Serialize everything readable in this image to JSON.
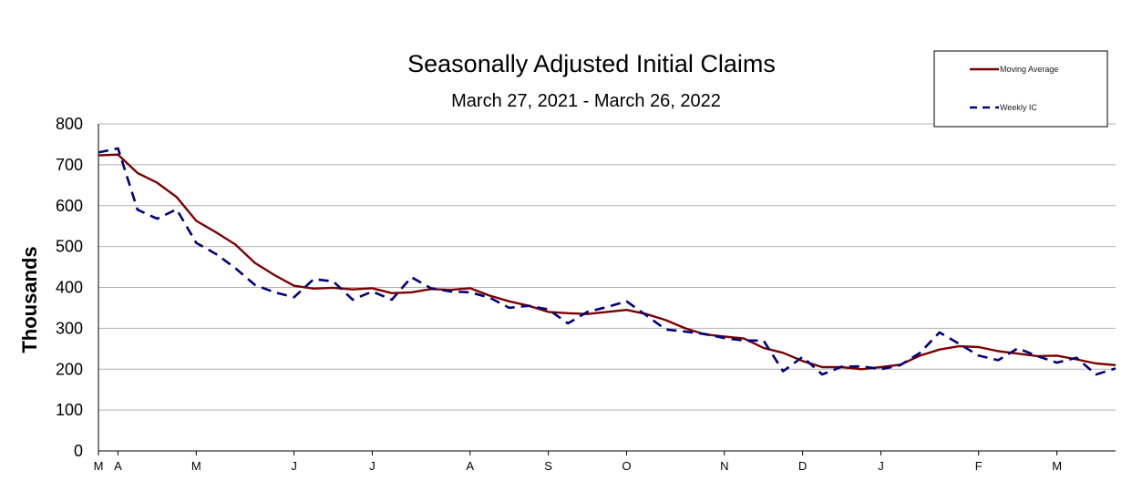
{
  "chart_data": {
    "type": "line",
    "title": "Seasonally Adjusted Initial Claims",
    "subtitle": "March 27, 2021 - March 26, 2022",
    "ylabel": "Thousands",
    "xlabel": "",
    "ylim": [
      0,
      800
    ],
    "yticks": [
      "0",
      "100",
      "200",
      "300",
      "400",
      "500",
      "600",
      "700",
      "800"
    ],
    "xlim": [
      0,
      52
    ],
    "xticks": [
      {
        "label": "M",
        "week": 0
      },
      {
        "label": "A",
        "week": 1
      },
      {
        "label": "M",
        "week": 5
      },
      {
        "label": "J",
        "week": 10
      },
      {
        "label": "J",
        "week": 14
      },
      {
        "label": "A",
        "week": 19
      },
      {
        "label": "S",
        "week": 23
      },
      {
        "label": "O",
        "week": 27
      },
      {
        "label": "N",
        "week": 32
      },
      {
        "label": "D",
        "week": 36
      },
      {
        "label": "J",
        "week": 40
      },
      {
        "label": "F",
        "week": 45
      },
      {
        "label": "M",
        "week": 49
      }
    ],
    "grid": true,
    "legend": "top-right",
    "series": [
      {
        "name": "Moving Average",
        "color": "#7b0000",
        "style": "solid",
        "values": [
          723,
          725,
          680,
          656,
          621,
          563,
          535,
          505,
          460,
          430,
          404,
          397,
          399,
          395,
          398,
          386,
          388,
          396,
          394,
          398,
          380,
          366,
          355,
          340,
          337,
          335,
          340,
          345,
          335,
          320,
          300,
          285,
          280,
          275,
          252,
          240,
          220,
          205,
          205,
          200,
          205,
          211,
          233,
          248,
          256,
          254,
          244,
          238,
          232,
          233,
          224,
          214,
          210
        ]
      },
      {
        "name": "Weekly IC",
        "color": "#00007a",
        "style": "dashed",
        "values": [
          730,
          740,
          590,
          568,
          591,
          509,
          482,
          447,
          406,
          388,
          376,
          420,
          415,
          370,
          390,
          370,
          425,
          398,
          390,
          388,
          375,
          350,
          355,
          346,
          312,
          340,
          352,
          366,
          332,
          297,
          292,
          286,
          276,
          270,
          270,
          195,
          230,
          187,
          206,
          207,
          200,
          210,
          240,
          290,
          262,
          233,
          222,
          251,
          232,
          216,
          228,
          187,
          202
        ]
      }
    ]
  }
}
